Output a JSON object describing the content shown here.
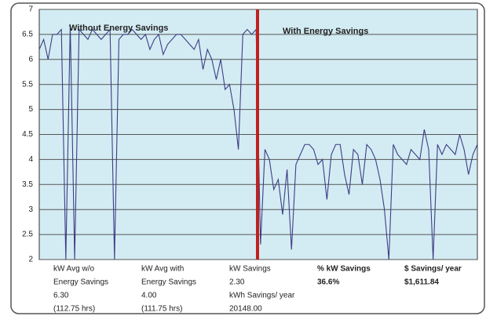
{
  "chart_data": {
    "type": "line",
    "annotations": [
      "Without Energy Savings",
      "With Energy Savings"
    ],
    "series": [
      {
        "color": "#3d3d85",
        "values": [
          6.2,
          6.4,
          6.0,
          6.5,
          6.5,
          6.6,
          2.0,
          6.7,
          2.0,
          6.6,
          6.5,
          6.4,
          6.6,
          6.5,
          6.4,
          6.5,
          6.6,
          2.0,
          6.4,
          6.5,
          6.5,
          6.6,
          6.5,
          6.4,
          6.5,
          6.2,
          6.4,
          6.5,
          6.1,
          6.3,
          6.4,
          6.5,
          6.5,
          6.4,
          6.3,
          6.2,
          6.4,
          5.8,
          6.2,
          6.0,
          5.6,
          6.0,
          5.4,
          5.5,
          5.0,
          4.2,
          6.5,
          6.6,
          6.5,
          6.6,
          2.3,
          4.2,
          4.0,
          3.4,
          3.6,
          2.9,
          3.8,
          2.2,
          3.9,
          4.1,
          4.3,
          4.3,
          4.2,
          3.9,
          4.0,
          3.2,
          4.1,
          4.3,
          4.3,
          3.7,
          3.3,
          4.2,
          4.1,
          3.5,
          4.3,
          4.2,
          4.0,
          3.6,
          3.0,
          2.0,
          4.3,
          4.1,
          4.0,
          3.9,
          4.2,
          4.1,
          4.0,
          4.6,
          4.2,
          2.0,
          4.3,
          4.1,
          4.3,
          4.2,
          4.1,
          4.5,
          4.2,
          3.7,
          4.1,
          4.3
        ]
      }
    ],
    "ylim": [
      2,
      7
    ],
    "yticks": [
      2,
      2.5,
      3,
      3.5,
      4,
      4.5,
      5,
      5.5,
      6,
      6.5,
      7
    ],
    "grid": true,
    "stats": [
      [
        "kW Avg w/o",
        "Energy Savings",
        "6.30",
        "(112.75 hrs)"
      ],
      [
        "kW Avg with",
        "Energy Savings",
        "4.00",
        "(111.75 hrs)"
      ],
      [
        "kW Savings",
        "2.30",
        "kWh Savings/ year",
        "20148.00"
      ],
      [
        "% kW Savings",
        "36.6%"
      ],
      [
        "$ Savings/ year",
        "$1,611.84"
      ]
    ]
  }
}
